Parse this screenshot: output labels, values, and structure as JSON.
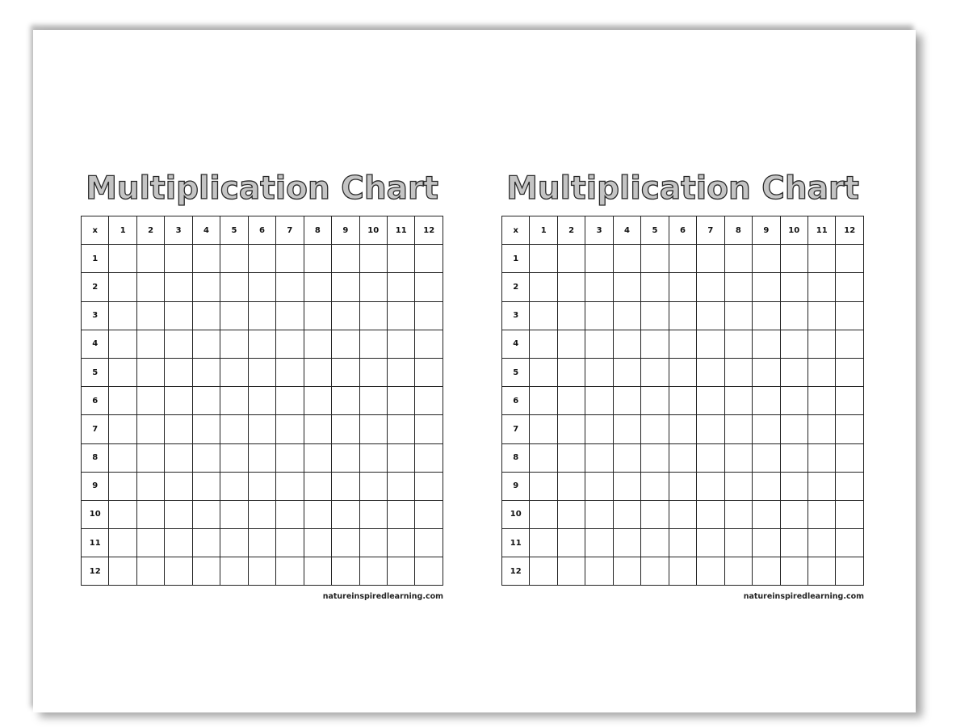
{
  "charts": [
    {
      "title": "Multiplication Chart",
      "corner": "x",
      "columns": [
        "1",
        "2",
        "3",
        "4",
        "5",
        "6",
        "7",
        "8",
        "9",
        "10",
        "11",
        "12"
      ],
      "rows": [
        "1",
        "2",
        "3",
        "4",
        "5",
        "6",
        "7",
        "8",
        "9",
        "10",
        "11",
        "12"
      ],
      "footer": "natureinspiredlearning.com"
    },
    {
      "title": "Multiplication Chart",
      "corner": "x",
      "columns": [
        "1",
        "2",
        "3",
        "4",
        "5",
        "6",
        "7",
        "8",
        "9",
        "10",
        "11",
        "12"
      ],
      "rows": [
        "1",
        "2",
        "3",
        "4",
        "5",
        "6",
        "7",
        "8",
        "9",
        "10",
        "11",
        "12"
      ],
      "footer": "natureinspiredlearning.com"
    }
  ]
}
